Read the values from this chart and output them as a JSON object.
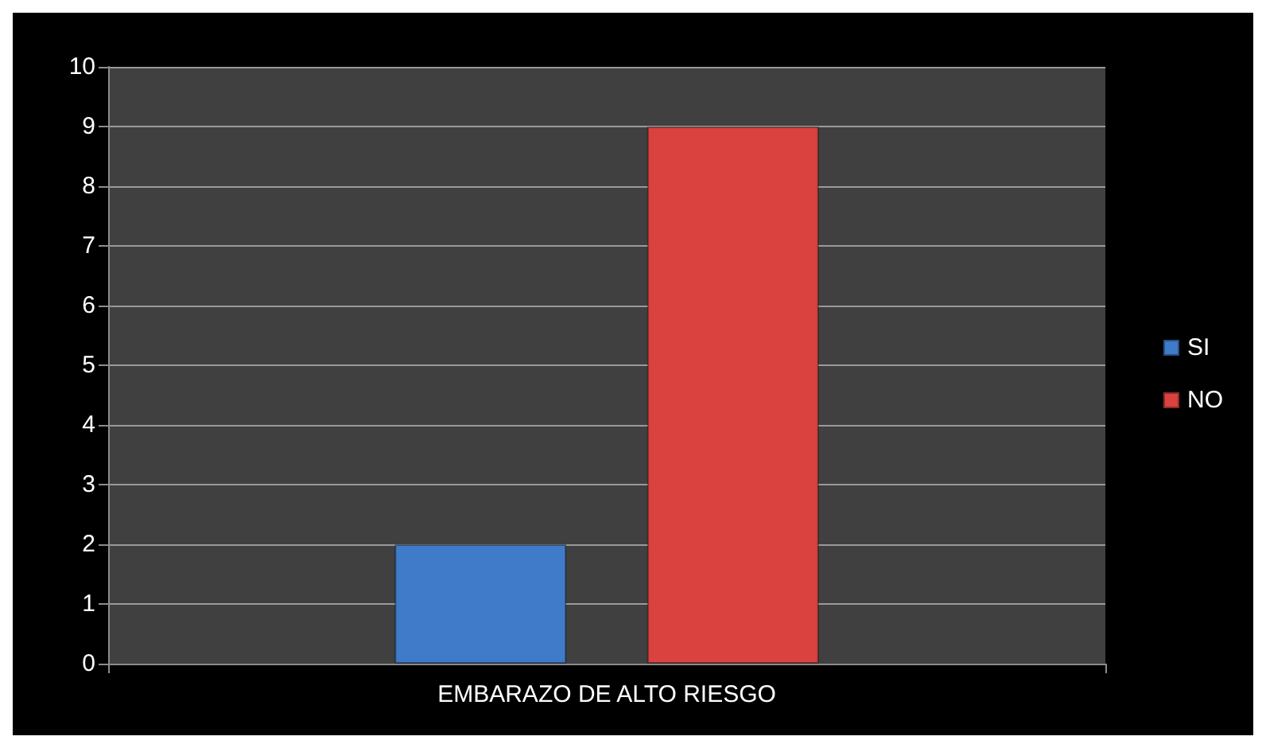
{
  "chart_data": {
    "type": "bar",
    "categories": [
      "EMBARAZO DE ALTO RIESGO"
    ],
    "series": [
      {
        "name": "SI",
        "color": "#3f7bc8",
        "values": [
          2
        ]
      },
      {
        "name": "NO",
        "color": "#d9423f",
        "values": [
          9
        ]
      }
    ],
    "ylim": [
      0,
      10
    ],
    "yticks": [
      0,
      1,
      2,
      3,
      4,
      5,
      6,
      7,
      8,
      9,
      10
    ],
    "grid": "y",
    "legend": "right"
  }
}
